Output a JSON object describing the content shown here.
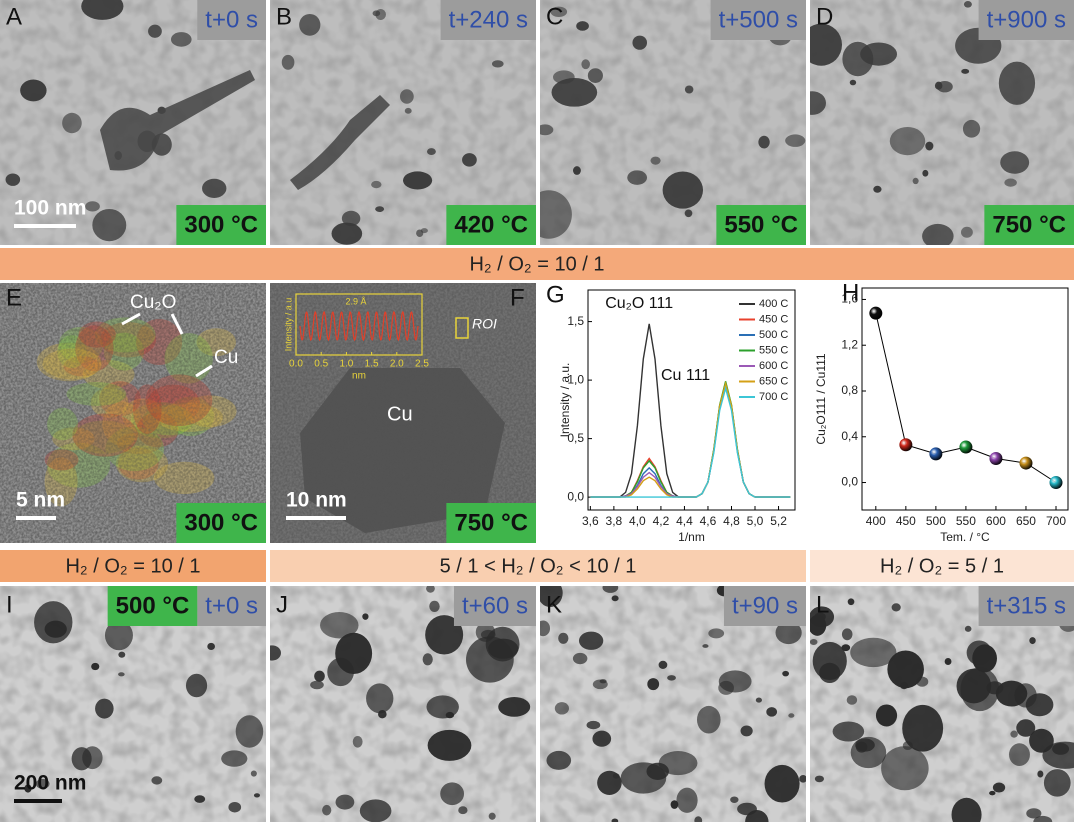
{
  "top_row": [
    {
      "letter": "A",
      "time": "t+0 s",
      "temperature": "300 °C",
      "scale_bar": "100 nm"
    },
    {
      "letter": "B",
      "time": "t+240 s",
      "temperature": "420 °C"
    },
    {
      "letter": "C",
      "time": "t+500 s",
      "temperature": "550 °C"
    },
    {
      "letter": "D",
      "time": "t+900 s",
      "temperature": "750 °C"
    }
  ],
  "banner_top": "H₂ / O₂ = 10 / 1",
  "panel_E": {
    "letter": "E",
    "labels": [
      "Cu₂O",
      "Cu"
    ],
    "scale_bar": "5 nm",
    "temperature": "300 °C"
  },
  "panel_F": {
    "letter": "F",
    "label": "Cu",
    "roi": "ROI",
    "scale_bar": "10 nm",
    "temperature": "750 °C",
    "inset": {
      "ylabel": "Intensity / a.u",
      "xlabel": "nm",
      "spacing": "2.9 Å",
      "xlim": [
        0,
        2.5
      ],
      "xticks": [
        {
          "value": 0,
          "label": "0.0"
        },
        {
          "value": 0.5,
          "label": "0.5"
        },
        {
          "value": 1,
          "label": "1.0"
        },
        {
          "value": 1.5,
          "label": "1.5"
        },
        {
          "value": 2,
          "label": "2.0"
        },
        {
          "value": 2.5,
          "label": "2.5"
        }
      ]
    }
  },
  "chart_data": [
    {
      "type": "line",
      "letter": "G",
      "xlabel": "1/nm",
      "ylabel": "Intensity / a.u.",
      "peak_labels": [
        "Cu₂O 111",
        "Cu 111"
      ],
      "legend": "upper right",
      "xlim": [
        3.58,
        5.34
      ],
      "ylim": [
        -0.11,
        1.77
      ],
      "xticks": [
        {
          "value": 3.6,
          "label": "3,6"
        },
        {
          "value": 3.8,
          "label": "3,8"
        },
        {
          "value": 4.0,
          "label": "4,0"
        },
        {
          "value": 4.2,
          "label": "4,2"
        },
        {
          "value": 4.4,
          "label": "4,4"
        },
        {
          "value": 4.6,
          "label": "4,6"
        },
        {
          "value": 4.8,
          "label": "4,8"
        },
        {
          "value": 5.0,
          "label": "5,0"
        },
        {
          "value": 5.2,
          "label": "5,2"
        }
      ],
      "yticks": [
        {
          "value": 0,
          "label": "0,0"
        },
        {
          "value": 0.5,
          "label": "0,5"
        },
        {
          "value": 1,
          "label": "1,0"
        },
        {
          "value": 1.5,
          "label": "1,5"
        }
      ],
      "x": [
        3.6,
        3.65,
        3.7,
        3.75,
        3.8,
        3.85,
        3.9,
        3.95,
        4.0,
        4.05,
        4.1,
        4.15,
        4.2,
        4.25,
        4.3,
        4.35,
        4.4,
        4.45,
        4.5,
        4.55,
        4.6,
        4.65,
        4.7,
        4.75,
        4.8,
        4.85,
        4.9,
        4.95,
        5.0,
        5.05,
        5.1,
        5.15,
        5.2,
        5.25,
        5.3
      ],
      "series": [
        {
          "name": "400 C",
          "color": "#333333",
          "values": [
            0,
            0,
            0,
            0,
            0,
            0,
            0.04,
            0.2,
            0.61,
            1.18,
            1.48,
            1.18,
            0.61,
            0.2,
            0.04,
            0,
            0,
            0,
            0,
            0.03,
            0.13,
            0.4,
            0.78,
            0.97,
            0.78,
            0.4,
            0.13,
            0.03,
            0,
            0,
            0,
            0,
            0,
            0,
            0
          ]
        },
        {
          "name": "450 C",
          "color": "#e8412c",
          "values": [
            0,
            0,
            0,
            0,
            0,
            0,
            0.01,
            0.04,
            0.14,
            0.26,
            0.33,
            0.26,
            0.14,
            0.04,
            0.01,
            0,
            0,
            0,
            0,
            0.03,
            0.13,
            0.4,
            0.78,
            0.98,
            0.78,
            0.4,
            0.13,
            0.03,
            0,
            0,
            0,
            0,
            0,
            0,
            0
          ]
        },
        {
          "name": "500 C",
          "color": "#2a6fb5",
          "values": [
            0,
            0,
            0,
            0,
            0,
            0,
            0.01,
            0.03,
            0.1,
            0.2,
            0.25,
            0.2,
            0.1,
            0.03,
            0.01,
            0,
            0,
            0,
            0,
            0.03,
            0.13,
            0.39,
            0.77,
            0.96,
            0.77,
            0.39,
            0.13,
            0.03,
            0,
            0,
            0,
            0,
            0,
            0,
            0
          ]
        },
        {
          "name": "550 C",
          "color": "#2ca02c",
          "values": [
            0,
            0,
            0,
            0,
            0,
            0,
            0.01,
            0.04,
            0.13,
            0.25,
            0.31,
            0.25,
            0.13,
            0.04,
            0.01,
            0,
            0,
            0,
            0,
            0.03,
            0.13,
            0.41,
            0.79,
            0.99,
            0.79,
            0.41,
            0.13,
            0.03,
            0,
            0,
            0,
            0,
            0,
            0,
            0
          ]
        },
        {
          "name": "600 C",
          "color": "#9b59b6",
          "values": [
            0,
            0,
            0,
            0,
            0,
            0,
            0.01,
            0.03,
            0.09,
            0.17,
            0.21,
            0.17,
            0.09,
            0.03,
            0.01,
            0,
            0,
            0,
            0,
            0.03,
            0.13,
            0.39,
            0.76,
            0.95,
            0.76,
            0.39,
            0.13,
            0.03,
            0,
            0,
            0,
            0,
            0,
            0,
            0
          ]
        },
        {
          "name": "650 C",
          "color": "#d4a017",
          "values": [
            0,
            0,
            0,
            0,
            0,
            0,
            0,
            0.02,
            0.07,
            0.14,
            0.17,
            0.14,
            0.07,
            0.02,
            0,
            0,
            0,
            0,
            0,
            0.03,
            0.13,
            0.4,
            0.78,
            0.97,
            0.78,
            0.4,
            0.13,
            0.03,
            0,
            0,
            0,
            0,
            0,
            0,
            0
          ]
        },
        {
          "name": "700 C",
          "color": "#3cc6d6",
          "values": [
            0,
            0,
            0,
            0,
            0,
            0,
            0,
            0,
            0,
            0,
            0,
            0,
            0,
            0,
            0,
            0,
            0,
            0,
            0,
            0.03,
            0.13,
            0.38,
            0.74,
            0.93,
            0.74,
            0.38,
            0.13,
            0.03,
            0,
            0,
            0,
            0,
            0,
            0,
            0
          ]
        }
      ]
    },
    {
      "type": "scatter",
      "letter": "H",
      "xlabel": "Tem. / °C",
      "ylabel": "Cu₂O111 / Cu111",
      "connect": true,
      "color": "#000000",
      "xlim": [
        377,
        720
      ],
      "ylim": [
        -0.24,
        1.7
      ],
      "xticks": [
        400,
        450,
        500,
        550,
        600,
        650,
        700
      ],
      "yticks": [
        {
          "value": 0,
          "label": "0,0"
        },
        {
          "value": 0.4,
          "label": "0,4"
        },
        {
          "value": 0.8,
          "label": "0,8"
        },
        {
          "value": 1.2,
          "label": "1,2"
        },
        {
          "value": 1.6,
          "label": "1,6"
        }
      ],
      "x": [
        400,
        450,
        500,
        550,
        600,
        650,
        700
      ],
      "values": [
        1.48,
        0.33,
        0.25,
        0.31,
        0.21,
        0.17,
        0.0
      ],
      "point_colors": [
        "#111111",
        "#d0281c",
        "#2a5fb0",
        "#1e9a3a",
        "#8e44ad",
        "#c8901a",
        "#25b8c8"
      ]
    }
  ],
  "banners_bottom": [
    "H₂ / O₂ = 10 / 1",
    "5 / 1 < H₂ / O₂ < 10 / 1",
    "H₂ / O₂ = 5 / 1"
  ],
  "bottom_row": [
    {
      "letter": "I",
      "temperature": "500 °C",
      "time": "t+0 s",
      "scale_bar": "200 nm"
    },
    {
      "letter": "J",
      "time": "t+60 s"
    },
    {
      "letter": "K",
      "time": "t+90 s"
    },
    {
      "letter": "L",
      "time": "t+315 s"
    }
  ]
}
